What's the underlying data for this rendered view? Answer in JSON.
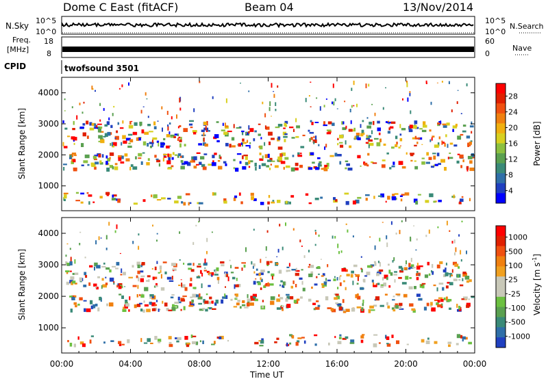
{
  "header": {
    "title": "Dome C East (fitACF)",
    "beam": "Beam 04",
    "date": "13/Nov/2014"
  },
  "status": {
    "nsky_label": "N.Sky",
    "nsky_ticks": [
      "10^5",
      "10^0"
    ],
    "nsearch_label": "N.Search",
    "nsearch_ticks": [
      "10^5",
      "10^0"
    ],
    "freq_label": "Freq.",
    "freq_unit": "[MHz]",
    "freq_ticks": [
      "18",
      "8"
    ],
    "nave_label": "Nave",
    "nave_ticks": [
      "60",
      "0"
    ],
    "cpid_label": "CPID",
    "cpid_value": "twofsound 3501"
  },
  "chart_data": [
    {
      "type": "heatmap",
      "name": "power",
      "ylabel": "Slant Range [km]",
      "ylim": [
        200,
        4500
      ],
      "yticks": [
        "4000",
        "3000",
        "2000",
        "1000"
      ],
      "yticks_values": [
        4000,
        3000,
        2000,
        1000
      ],
      "colorbar_label": "Power [dB]",
      "colorbar_ticks": [
        "28",
        "24",
        "20",
        "16",
        "12",
        "8",
        "4"
      ],
      "colorbar_colors": [
        "#0000ff",
        "#2040c0",
        "#2f6fa8",
        "#3a8a78",
        "#5aa050",
        "#8cc040",
        "#d8d020",
        "#f0b010",
        "#f08010",
        "#f05010",
        "#e02000",
        "#ff0000"
      ]
    },
    {
      "type": "heatmap",
      "name": "velocity",
      "ylabel": "Slant Range [km]",
      "ylim": [
        200,
        4500
      ],
      "yticks": [
        "4000",
        "3000",
        "2000",
        "1000"
      ],
      "yticks_values": [
        4000,
        3000,
        2000,
        1000
      ],
      "colorbar_label": "Velocity [m s",
      "colorbar_label_sup": "-1",
      "colorbar_label_end": "]",
      "colorbar_ticks": [
        "1000",
        "500",
        "100",
        "25",
        "-25",
        "-100",
        "-500",
        "-1000"
      ],
      "colorbar_colors": [
        "#2040c0",
        "#2f6fa8",
        "#3a8a78",
        "#5aa050",
        "#6cc040",
        "#c8c8b8",
        "#c8c8b8",
        "#f0a020",
        "#f08010",
        "#f05010",
        "#e02000",
        "#ff0000"
      ]
    }
  ],
  "time_axis": {
    "label": "Time UT",
    "ticks": [
      "00:00",
      "04:00",
      "08:00",
      "12:00",
      "16:00",
      "20:00",
      "00:00"
    ],
    "hours": [
      0,
      4,
      8,
      12,
      16,
      20,
      24
    ]
  },
  "colors": {
    "axis": "#000000",
    "background": "#ffffff"
  }
}
